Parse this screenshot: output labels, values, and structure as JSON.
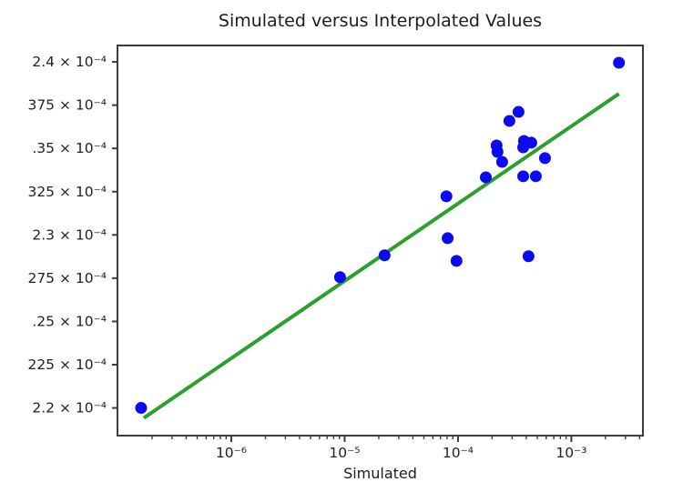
{
  "title": "Simulated versus Interpolated Values",
  "colors": {
    "dot": "#0b0bf0",
    "line": "#2ca02c",
    "axis": "#3c3c3c",
    "text": "#222222",
    "background": "#ffffff"
  },
  "chart_data": {
    "type": "scatter",
    "title": "Simulated versus Interpolated Values",
    "xlabel": "Simulated",
    "ylabel": "",
    "x_scale": "log",
    "y_scale": "linear",
    "xlim": [
      9.9e-08,
      0.00428
    ],
    "ylim": [
      0.0002184,
      0.00024095
    ],
    "grid": false,
    "legend": false,
    "x_ticks": [
      {
        "value": 1e-06,
        "label": "10⁻⁶"
      },
      {
        "value": 1e-05,
        "label": "10⁻⁵"
      },
      {
        "value": 0.0001,
        "label": "10⁻⁴"
      },
      {
        "value": 0.001,
        "label": "10⁻³"
      }
    ],
    "y_ticks": [
      {
        "value": 0.00024,
        "label": "2.4 × 10⁻⁴"
      },
      {
        "value": 0.0002375,
        "label": "375 × 10⁻⁴"
      },
      {
        "value": 0.000235,
        "label": ".35 × 10⁻⁴"
      },
      {
        "value": 0.0002325,
        "label": "325 × 10⁻⁴"
      },
      {
        "value": 0.00023,
        "label": "2.3 × 10⁻⁴"
      },
      {
        "value": 0.0002275,
        "label": "275 × 10⁻⁴"
      },
      {
        "value": 0.000225,
        "label": ".25 × 10⁻⁴"
      },
      {
        "value": 0.0002225,
        "label": "225 × 10⁻⁴"
      },
      {
        "value": 0.00022,
        "label": "2.2 × 10⁻⁴"
      }
    ],
    "series": [
      {
        "name": "scatter-points",
        "marker": "circle",
        "color": "#0b0bf0",
        "points": [
          [
            1.6e-07,
            0.00022
          ],
          [
            9.1e-06,
            0.00022756
          ],
          [
            2.25e-05,
            0.00022882
          ],
          [
            7.9e-05,
            0.00023223
          ],
          [
            8.1e-05,
            0.00022981
          ],
          [
            9.7e-05,
            0.0002285
          ],
          [
            0.000176,
            0.00023333
          ],
          [
            0.000219,
            0.00023517
          ],
          [
            0.000223,
            0.0002348
          ],
          [
            0.000245,
            0.00023422
          ],
          [
            0.000284,
            0.00023659
          ],
          [
            0.000342,
            0.00023711
          ],
          [
            0.000382,
            0.00023543
          ],
          [
            0.000443,
            0.00023533
          ],
          [
            0.000376,
            0.00023506
          ],
          [
            0.000585,
            0.00023444
          ],
          [
            0.000376,
            0.00023339
          ],
          [
            0.000486,
            0.00023339
          ],
          [
            0.000419,
            0.00022877
          ],
          [
            0.00263,
            0.00023995
          ]
        ]
      }
    ],
    "fit_line": {
      "name": "fit-line",
      "color": "#2ca02c",
      "x1": 1.69e-07,
      "y1": 0.00021942,
      "x2": 0.00263,
      "y2": 0.00023816
    }
  }
}
